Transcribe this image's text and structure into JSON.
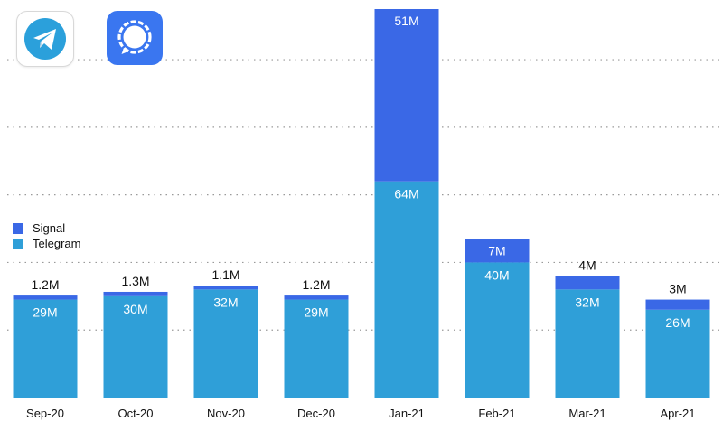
{
  "colors": {
    "signal": "#3a68e6",
    "telegram": "#2f9fd8",
    "grid": "#9a9a9a",
    "baseline": "#cfcfcf",
    "label_dark": "#111111",
    "label_light": "#ffffff"
  },
  "icons": {
    "telegram": "telegram-app-icon",
    "signal": "signal-app-icon"
  },
  "legend": {
    "position": "left",
    "items": [
      {
        "key": "signal",
        "label": "Signal"
      },
      {
        "key": "telegram",
        "label": "Telegram"
      }
    ]
  },
  "chart_data": {
    "type": "bar",
    "stacked": true,
    "title": "",
    "xlabel": "",
    "ylabel": "",
    "grid": true,
    "ylim": [
      0,
      115
    ],
    "categories": [
      "Sep-20",
      "Oct-20",
      "Nov-20",
      "Dec-20",
      "Jan-21",
      "Feb-21",
      "Mar-21",
      "Apr-21"
    ],
    "series": [
      {
        "name": "Telegram",
        "key": "telegram",
        "values": [
          29,
          30,
          32,
          29,
          64,
          40,
          32,
          26
        ],
        "labels": [
          "29M",
          "30M",
          "32M",
          "29M",
          "64M",
          "40M",
          "32M",
          "26M"
        ]
      },
      {
        "name": "Signal",
        "key": "signal",
        "values": [
          1.2,
          1.3,
          1.1,
          1.2,
          51,
          7,
          4,
          3
        ],
        "labels": [
          "1.2M",
          "1.3M",
          "1.1M",
          "1.2M",
          "51M",
          "7M",
          "4M",
          "3M"
        ]
      }
    ]
  }
}
